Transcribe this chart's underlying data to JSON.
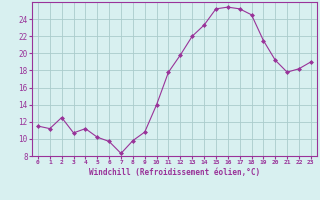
{
  "x": [
    0,
    1,
    2,
    3,
    4,
    5,
    6,
    7,
    8,
    9,
    10,
    11,
    12,
    13,
    14,
    15,
    16,
    17,
    18,
    19,
    20,
    21,
    22,
    23
  ],
  "y": [
    11.5,
    11.2,
    12.5,
    10.7,
    11.2,
    10.2,
    9.7,
    8.3,
    9.8,
    10.8,
    14.0,
    17.8,
    19.8,
    22.0,
    23.3,
    25.2,
    25.4,
    25.2,
    24.5,
    21.5,
    19.2,
    17.8,
    18.2,
    19.0
  ],
  "line_color": "#993399",
  "marker_color": "#993399",
  "bg_color": "#d8f0f0",
  "grid_color": "#aacccc",
  "xlabel": "Windchill (Refroidissement éolien,°C)",
  "xlabel_color": "#993399",
  "tick_color": "#993399",
  "ylim": [
    8,
    26
  ],
  "yticks": [
    8,
    10,
    12,
    14,
    16,
    18,
    20,
    22,
    24
  ],
  "axis_spine_color": "#993399"
}
